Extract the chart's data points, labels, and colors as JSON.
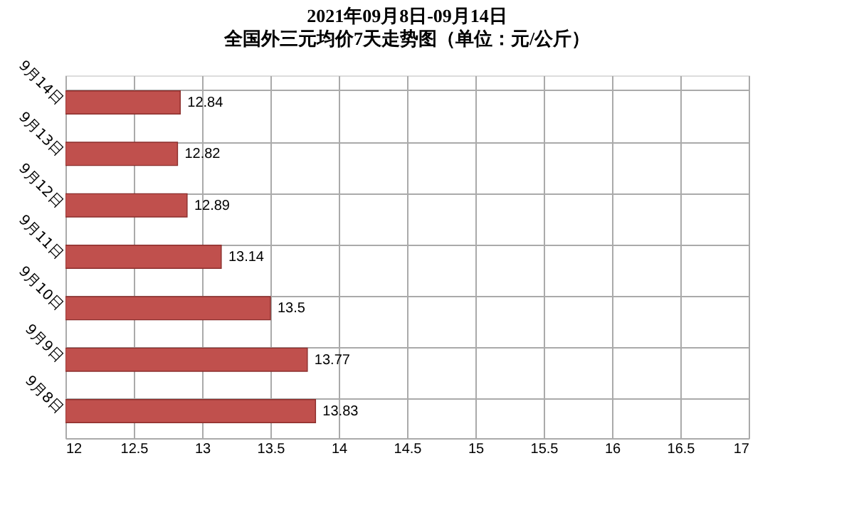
{
  "chart_data": {
    "type": "bar",
    "orientation": "horizontal",
    "title": "2021年09月8日-09月14日",
    "subtitle": "全国外三元均价7天走势图（单位：元/公斤）",
    "categories": [
      "9月14日",
      "9月13日",
      "9月12日",
      "9月11日",
      "9月10日",
      "9月9日",
      "9月8日"
    ],
    "values": [
      12.84,
      12.82,
      12.89,
      13.14,
      13.5,
      13.77,
      13.83
    ],
    "color": "#c0504d",
    "xlim": [
      12,
      17
    ],
    "xticks": [
      12,
      12.5,
      13,
      13.5,
      14,
      14.5,
      15,
      15.5,
      16,
      16.5,
      17
    ],
    "data_labels": true,
    "grid": true
  }
}
